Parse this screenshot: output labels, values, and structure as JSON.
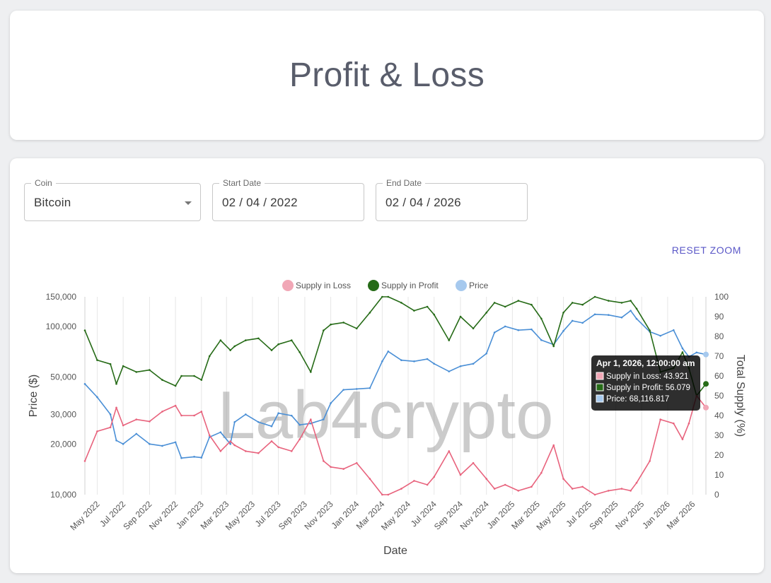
{
  "header": {
    "title": "Profit & Loss"
  },
  "filters": {
    "coin": {
      "label": "Coin",
      "value": "Bitcoin"
    },
    "start_date": {
      "label": "Start Date",
      "value": "02 / 04 / 2022"
    },
    "end_date": {
      "label": "End Date",
      "value": "02 / 04 / 2026"
    }
  },
  "reset_zoom_label": "RESET ZOOM",
  "watermark": "Lab4crypto",
  "colors": {
    "loss": "#e8637d",
    "loss_legend": "#f1a7b6",
    "profit": "#266b17",
    "price": "#4a8fd6",
    "price_legend": "#a6c9ee"
  },
  "chart_data": {
    "type": "line",
    "xlabel": "Date",
    "ylabel_left": "Price ($)",
    "ylabel_right": "Total Supply (%)",
    "left_axis": {
      "scale": "log",
      "ylim": [
        10000,
        150000
      ],
      "ticks": [
        10000,
        20000,
        30000,
        50000,
        100000,
        150000
      ]
    },
    "right_axis": {
      "ylim": [
        0,
        100
      ],
      "ticks": [
        0,
        10,
        20,
        30,
        40,
        50,
        60,
        70,
        80,
        90,
        100
      ]
    },
    "x_ticks": [
      "May 2022",
      "Jul 2022",
      "Sep 2022",
      "Nov 2022",
      "Jan 2023",
      "Mar 2023",
      "May 2023",
      "Jul 2023",
      "Sep 2023",
      "Nov 2023",
      "Jan 2024",
      "Mar 2024",
      "May 2024",
      "Jul 2024",
      "Sep 2024",
      "Nov 2024",
      "Jan 2025",
      "Mar 2025",
      "May 2025",
      "Jul 2025",
      "Sep 2025",
      "Nov 2025",
      "Jan 2026",
      "Mar 2026"
    ],
    "grid": "vertical",
    "legend_position": "top",
    "x": [
      "2022-04-02",
      "2022-05-01",
      "2022-06-01",
      "2022-06-15",
      "2022-07-01",
      "2022-08-01",
      "2022-09-01",
      "2022-10-01",
      "2022-11-01",
      "2022-11-15",
      "2022-12-15",
      "2023-01-01",
      "2023-01-20",
      "2023-02-15",
      "2023-03-10",
      "2023-03-20",
      "2023-04-15",
      "2023-05-15",
      "2023-06-15",
      "2023-07-01",
      "2023-08-01",
      "2023-08-20",
      "2023-09-15",
      "2023-10-15",
      "2023-11-01",
      "2023-12-01",
      "2024-01-01",
      "2024-02-01",
      "2024-03-01",
      "2024-03-15",
      "2024-04-15",
      "2024-05-15",
      "2024-06-15",
      "2024-07-01",
      "2024-08-05",
      "2024-09-01",
      "2024-10-01",
      "2024-11-01",
      "2024-11-20",
      "2024-12-15",
      "2025-01-15",
      "2025-02-15",
      "2025-03-10",
      "2025-04-08",
      "2025-05-01",
      "2025-05-22",
      "2025-06-15",
      "2025-07-14",
      "2025-08-15",
      "2025-09-15",
      "2025-10-06",
      "2025-10-20",
      "2025-11-20",
      "2025-12-15",
      "2026-01-15",
      "2026-02-05",
      "2026-02-20",
      "2026-03-10",
      "2026-04-01"
    ],
    "series": [
      {
        "name": "Supply in Loss",
        "axis": "right",
        "values": [
          17,
          32,
          34,
          44,
          35,
          38,
          37,
          42,
          45,
          40,
          40,
          42,
          30,
          22,
          27,
          25,
          22,
          21,
          27,
          24,
          22,
          28,
          38,
          17,
          14,
          13,
          16,
          8,
          0,
          0,
          3,
          7,
          5,
          9,
          22,
          10,
          16,
          8,
          3,
          5,
          2,
          4,
          11,
          25,
          8,
          3,
          4,
          0,
          2,
          3,
          2,
          6,
          17,
          38,
          36,
          28,
          36,
          50,
          44
        ]
      },
      {
        "name": "Supply in Profit",
        "axis": "right",
        "values": [
          83,
          68,
          66,
          56,
          65,
          62,
          63,
          58,
          55,
          60,
          60,
          58,
          70,
          78,
          73,
          75,
          78,
          79,
          73,
          76,
          78,
          72,
          62,
          83,
          86,
          87,
          84,
          92,
          100,
          100,
          97,
          93,
          95,
          91,
          78,
          90,
          84,
          92,
          97,
          95,
          98,
          96,
          89,
          75,
          92,
          97,
          96,
          100,
          98,
          97,
          98,
          94,
          83,
          62,
          64,
          72,
          64,
          50,
          56
        ]
      },
      {
        "name": "Price",
        "axis": "left",
        "values": [
          45500,
          38000,
          30000,
          21000,
          20000,
          23000,
          20000,
          19500,
          20500,
          16500,
          16800,
          16600,
          22000,
          23500,
          20000,
          27000,
          30000,
          27000,
          25500,
          30500,
          29500,
          26000,
          26500,
          28000,
          35000,
          42000,
          42500,
          43000,
          62000,
          71000,
          63000,
          62000,
          64000,
          60000,
          54000,
          58000,
          60000,
          69000,
          92000,
          100000,
          95000,
          96000,
          83000,
          78000,
          94000,
          108000,
          105000,
          118000,
          117000,
          113000,
          124000,
          111000,
          93000,
          88000,
          95000,
          74000,
          66000,
          70000,
          68117
        ]
      }
    ],
    "tooltip": {
      "title": "Apr 1, 2026, 12:00:00 am",
      "lines": [
        "Supply in Loss: 43.921",
        "Supply in Profit: 56.079",
        "Price: 68,116.817"
      ]
    }
  }
}
